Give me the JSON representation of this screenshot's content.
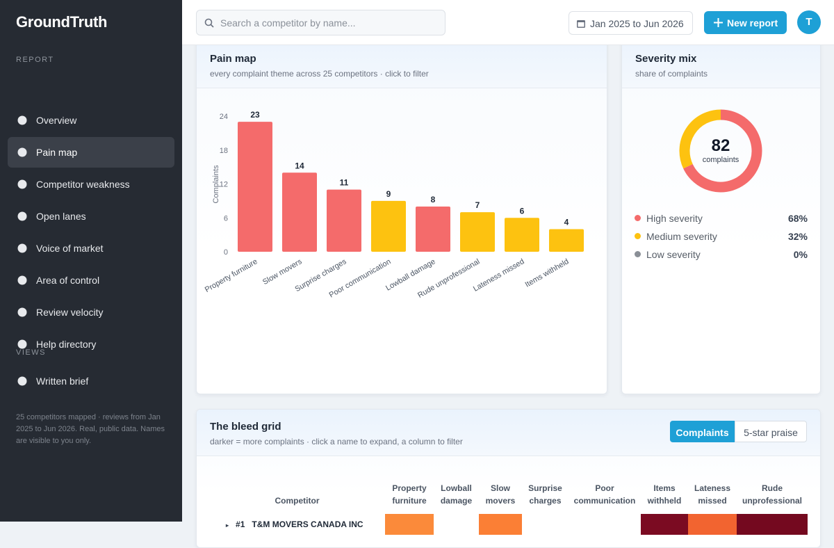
{
  "sidebar": {
    "brand": "GroundTruth",
    "sections": [
      {
        "label": "REPORT",
        "items": [
          "Overview",
          "Pain map",
          "Competitor weakness",
          "Open lanes",
          "Voice of market",
          "Area of control",
          "Review velocity",
          "Help directory"
        ]
      },
      {
        "label": "VIEWS",
        "items": [
          "Written brief"
        ]
      }
    ],
    "active_item": "Pain map",
    "footnote": "25 competitors mapped · reviews from Jan 2025 to Jun 2026. Real, public data. Names are visible to you only."
  },
  "topbar": {
    "search_placeholder": "Search a competitor by name...",
    "date_range": "Jan 2025 to Jun 2026",
    "new_report": "New report",
    "avatar": "T"
  },
  "chart_data": [
    {
      "type": "bar",
      "title": "Pain map",
      "subtitle": "every complaint theme across 25 competitors · click to filter",
      "y_label": "Complaints",
      "categories": [
        "Property furniture",
        "Slow movers",
        "Surprise charges",
        "Poor communication",
        "Lowball damage",
        "Rude unprofessional",
        "Lateness missed",
        "Items withheld"
      ],
      "values": [
        23,
        14,
        11,
        9,
        8,
        7,
        6,
        4
      ],
      "colors": [
        "#f46b6b",
        "#f46b6b",
        "#f46b6b",
        "#fdc210",
        "#f46b6b",
        "#fdc210",
        "#fdc210",
        "#fdc210"
      ],
      "ylim": [
        0,
        24
      ],
      "yticks": [
        0,
        6,
        12,
        18,
        24
      ],
      "grid": false
    },
    {
      "type": "donut",
      "title": "Severity mix",
      "subtitle": "share of complaints",
      "center_value": 82,
      "center_label": "complaints",
      "categories": [
        "High severity",
        "Medium severity",
        "Low severity"
      ],
      "values": [
        68,
        32,
        0
      ],
      "value_labels": [
        "68%",
        "32%",
        "0%"
      ],
      "colors": [
        "#f46b6b",
        "#fdc210",
        "#8a8f96"
      ]
    }
  ],
  "bleed_grid": {
    "title": "The bleed grid",
    "subtitle": "darker = more complaints · click a name to expand, a column to filter",
    "toggle": [
      "Complaints",
      "5-star praise"
    ],
    "active_toggle": "Complaints",
    "columns": [
      "Competitor",
      "Property furniture",
      "Lowball damage",
      "Slow movers",
      "Surprise charges",
      "Poor communication",
      "Items withheld",
      "Lateness missed",
      "Rude unprofessional"
    ],
    "rows": [
      {
        "rank": "#1",
        "name": "T&M MOVERS CANADA INC",
        "cell_colors": [
          "#fb8a3a",
          "#ffffff",
          "#fb7f35",
          "#ffffff",
          "#ffffff",
          "#7b0b22",
          "#f26430",
          "#74091f"
        ]
      }
    ]
  }
}
